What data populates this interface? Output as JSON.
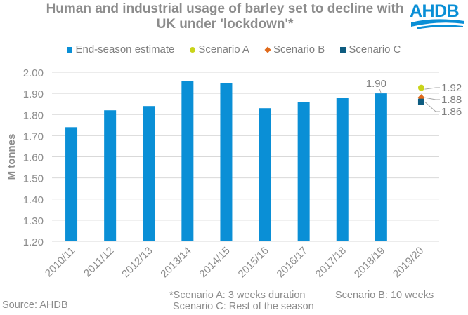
{
  "chart_data": {
    "type": "bar",
    "title": "Human and industrial usage of barley set to decline with UK under 'lockdown'*",
    "title_lines": [
      "Human and industrial usage of barley set to decline with",
      "UK under 'lockdown'*"
    ],
    "xlabel": "",
    "ylabel": "M tonnes",
    "ylim": [
      1.2,
      2.0
    ],
    "yticks": [
      "1.20",
      "1.30",
      "1.40",
      "1.50",
      "1.60",
      "1.70",
      "1.80",
      "1.90",
      "2.00"
    ],
    "ytick_values": [
      1.2,
      1.3,
      1.4,
      1.5,
      1.6,
      1.7,
      1.8,
      1.9,
      2.0
    ],
    "grid": true,
    "legend_position": "top",
    "categories": [
      "2010/11",
      "2011/12",
      "2012/13",
      "2013/14",
      "2014/15",
      "2015/16",
      "2016/17",
      "2017/18",
      "2018/19",
      "2019/20"
    ],
    "series": [
      {
        "name": "End-season estimate",
        "kind": "bar",
        "color": "#0a8fd6",
        "values": [
          1.74,
          1.82,
          1.84,
          1.96,
          1.95,
          1.83,
          1.86,
          1.88,
          1.9,
          null
        ],
        "data_labels": {
          "8": "1.90"
        }
      },
      {
        "name": "Scenario A",
        "kind": "marker-circle",
        "color": "#c9d41a",
        "category": "2019/20",
        "value": 1.92,
        "label": "1.92"
      },
      {
        "name": "Scenario B",
        "kind": "marker-diamond",
        "color": "#e06a1b",
        "category": "2019/20",
        "value": 1.88,
        "label": "1.88"
      },
      {
        "name": "Scenario C",
        "kind": "marker-square",
        "color": "#0e5c80",
        "category": "2019/20",
        "value": 1.86,
        "label": "1.86"
      }
    ]
  },
  "logo": {
    "text": "AHDB",
    "color": "#0a8fd6"
  },
  "footer": {
    "source": "Source: AHDB",
    "note_a": "*Scenario A:  3 weeks duration",
    "note_b": "Scenario B: 10 weeks",
    "note_c": "Scenario C: Rest of the season"
  }
}
